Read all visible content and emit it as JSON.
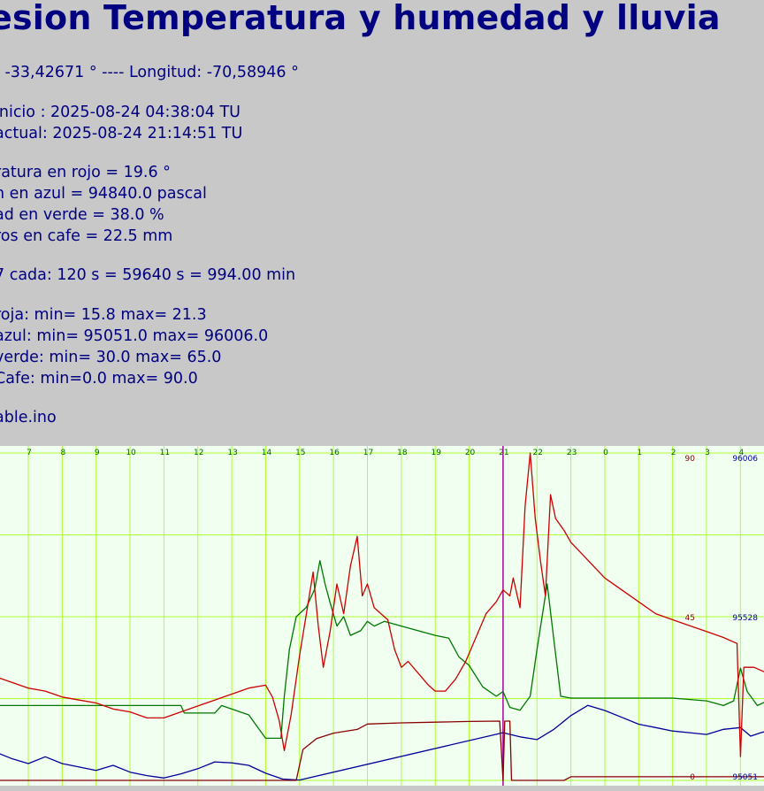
{
  "header": {
    "title": "esion Temperatura y humedad y lluvia",
    "coords": ": -33,42671 ° ---- Longitud: -70,58946 °",
    "start": "inicio : 2025-08-24 04:38:04 TU",
    "current": "actual: 2025-08-24 21:14:51 TU",
    "temp_now": "ratura en rojo = 19.6 °",
    "press_now": "n en azul = 94840.0 pascal",
    "hum_now": "ad en verde = 38.0 %",
    "rain_now": "ros en cafe = 22.5 mm",
    "interval": "7 cada: 120 s = 59640 s = 994.00 min",
    "red_range": " roja: min= 15.8 max= 21.3",
    "blue_range": " azul: min= 95051.0 max= 96006.0",
    "green_range": " verde: min= 30.0 max= 65.0",
    "cafe_range": " Cafe: min=0.0 max= 90.0",
    "file": "able.ino"
  },
  "colors": {
    "background": "#c8c8c8",
    "plot_bg": "#f0fff0",
    "grid": "#adff2f",
    "temperature": "#cc0000",
    "pressure": "#000099",
    "humidity": "#007700",
    "rain": "#880000",
    "marker": "#aa00aa",
    "text": "#000080"
  },
  "chart_data": {
    "type": "line",
    "x_hour_labels": [
      "7",
      "8",
      "9",
      "10",
      "11",
      "12",
      "13",
      "14",
      "15",
      "16",
      "17",
      "18",
      "19",
      "20",
      "21",
      "22",
      "23",
      "0",
      "1",
      "2",
      "3",
      "4"
    ],
    "right_scale_labels": [
      "90",
      "45",
      "0"
    ],
    "pressure_scale_labels": [
      "96006",
      "95528",
      "95051"
    ],
    "marker_hour": "21",
    "series": [
      {
        "name": "temperatura",
        "ylim": [
          15.8,
          21.3
        ],
        "points": [
          [
            6.0,
            17.55
          ],
          [
            6.5,
            17.45
          ],
          [
            7.0,
            17.35
          ],
          [
            7.5,
            17.3
          ],
          [
            8.0,
            17.2
          ],
          [
            8.5,
            17.15
          ],
          [
            9.0,
            17.1
          ],
          [
            9.5,
            17.0
          ],
          [
            10.0,
            16.95
          ],
          [
            10.5,
            16.85
          ],
          [
            11.0,
            16.85
          ],
          [
            11.5,
            16.95
          ],
          [
            12.0,
            17.05
          ],
          [
            12.5,
            17.15
          ],
          [
            13.0,
            17.25
          ],
          [
            13.5,
            17.35
          ],
          [
            14.0,
            17.4
          ],
          [
            14.2,
            17.2
          ],
          [
            14.4,
            16.8
          ],
          [
            14.55,
            16.3
          ],
          [
            14.75,
            16.9
          ],
          [
            15.0,
            17.9
          ],
          [
            15.2,
            18.6
          ],
          [
            15.4,
            19.3
          ],
          [
            15.55,
            18.4
          ],
          [
            15.7,
            17.7
          ],
          [
            15.9,
            18.3
          ],
          [
            16.1,
            19.1
          ],
          [
            16.3,
            18.6
          ],
          [
            16.5,
            19.4
          ],
          [
            16.7,
            19.9
          ],
          [
            16.85,
            18.9
          ],
          [
            17.0,
            19.1
          ],
          [
            17.2,
            18.7
          ],
          [
            17.4,
            18.6
          ],
          [
            17.6,
            18.5
          ],
          [
            17.8,
            18.0
          ],
          [
            18.0,
            17.7
          ],
          [
            18.2,
            17.8
          ],
          [
            18.5,
            17.6
          ],
          [
            18.8,
            17.4
          ],
          [
            19.0,
            17.3
          ],
          [
            19.3,
            17.3
          ],
          [
            19.6,
            17.5
          ],
          [
            19.9,
            17.8
          ],
          [
            20.2,
            18.2
          ],
          [
            20.5,
            18.6
          ],
          [
            20.8,
            18.8
          ],
          [
            21.0,
            19.0
          ],
          [
            21.2,
            18.9
          ],
          [
            21.3,
            19.2
          ],
          [
            21.5,
            18.7
          ],
          [
            21.65,
            20.4
          ],
          [
            21.8,
            21.3
          ],
          [
            21.95,
            20.2
          ],
          [
            22.1,
            19.5
          ],
          [
            22.25,
            18.9
          ],
          [
            22.4,
            20.6
          ],
          [
            22.55,
            20.2
          ],
          [
            22.8,
            20.0
          ],
          [
            23.0,
            19.8
          ],
          [
            23.5,
            19.5
          ],
          [
            24.0,
            19.2
          ],
          [
            24.5,
            19.0
          ],
          [
            25.0,
            18.8
          ],
          [
            25.5,
            18.6
          ],
          [
            26.0,
            18.5
          ],
          [
            26.5,
            18.4
          ],
          [
            27.0,
            18.3
          ],
          [
            27.5,
            18.2
          ],
          [
            27.9,
            18.1
          ],
          [
            28.0,
            16.2
          ],
          [
            28.1,
            17.7
          ],
          [
            28.4,
            17.7
          ],
          [
            28.8,
            17.6
          ]
        ]
      },
      {
        "name": "humedad",
        "ylim": [
          30.0,
          65.0
        ],
        "points": [
          [
            6.0,
            38.0
          ],
          [
            11.5,
            38.0
          ],
          [
            11.6,
            37.2
          ],
          [
            12.5,
            37.2
          ],
          [
            12.7,
            38.0
          ],
          [
            13.5,
            37.0
          ],
          [
            14.0,
            34.5
          ],
          [
            14.45,
            34.5
          ],
          [
            14.55,
            39.0
          ],
          [
            14.7,
            44.0
          ],
          [
            14.9,
            47.5
          ],
          [
            15.2,
            48.5
          ],
          [
            15.45,
            50.5
          ],
          [
            15.6,
            53.5
          ],
          [
            15.75,
            51.0
          ],
          [
            15.9,
            49.0
          ],
          [
            16.1,
            46.5
          ],
          [
            16.3,
            47.5
          ],
          [
            16.5,
            45.5
          ],
          [
            16.8,
            46.0
          ],
          [
            17.0,
            47.0
          ],
          [
            17.2,
            46.5
          ],
          [
            17.5,
            47.0
          ],
          [
            18.0,
            46.5
          ],
          [
            18.5,
            46.0
          ],
          [
            19.0,
            45.5
          ],
          [
            19.4,
            45.2
          ],
          [
            19.7,
            43.2
          ],
          [
            20.0,
            42.3
          ],
          [
            20.4,
            40.0
          ],
          [
            20.8,
            39.0
          ],
          [
            21.0,
            39.5
          ],
          [
            21.2,
            37.8
          ],
          [
            21.5,
            37.5
          ],
          [
            21.8,
            39.0
          ],
          [
            22.0,
            44.0
          ],
          [
            22.3,
            51.0
          ],
          [
            22.5,
            45.0
          ],
          [
            22.7,
            39.0
          ],
          [
            23.0,
            38.8
          ],
          [
            24.0,
            38.8
          ],
          [
            25.0,
            38.8
          ],
          [
            26.0,
            38.8
          ],
          [
            27.0,
            38.5
          ],
          [
            27.5,
            38.0
          ],
          [
            27.8,
            38.5
          ],
          [
            28.0,
            42.0
          ],
          [
            28.2,
            39.5
          ],
          [
            28.5,
            38.0
          ],
          [
            28.8,
            38.5
          ]
        ]
      },
      {
        "name": "presion",
        "ylim": [
          95051.0,
          96006.0
        ],
        "points": [
          [
            6.0,
            95135
          ],
          [
            6.5,
            95115
          ],
          [
            7.0,
            95100
          ],
          [
            7.5,
            95120
          ],
          [
            8.0,
            95100
          ],
          [
            8.5,
            95090
          ],
          [
            9.0,
            95080
          ],
          [
            9.5,
            95095
          ],
          [
            10.0,
            95075
          ],
          [
            10.5,
            95065
          ],
          [
            11.0,
            95058
          ],
          [
            11.5,
            95070
          ],
          [
            12.0,
            95085
          ],
          [
            12.5,
            95105
          ],
          [
            13.0,
            95102
          ],
          [
            13.5,
            95095
          ],
          [
            14.0,
            95072
          ],
          [
            14.5,
            95055
          ],
          [
            15.0,
            95052
          ],
          [
            21.0,
            95190
          ],
          [
            21.5,
            95178
          ],
          [
            22.0,
            95170
          ],
          [
            22.5,
            95200
          ],
          [
            23.0,
            95240
          ],
          [
            23.5,
            95270
          ],
          [
            24.0,
            95255
          ],
          [
            24.5,
            95235
          ],
          [
            25.0,
            95215
          ],
          [
            25.5,
            95205
          ],
          [
            26.0,
            95195
          ],
          [
            26.5,
            95190
          ],
          [
            27.0,
            95185
          ],
          [
            27.5,
            95200
          ],
          [
            28.0,
            95205
          ],
          [
            28.3,
            95180
          ],
          [
            28.6,
            95190
          ],
          [
            28.8,
            95195
          ]
        ]
      },
      {
        "name": "lluvia",
        "ylim": [
          0.0,
          90.0
        ],
        "points": [
          [
            6.0,
            0
          ],
          [
            14.9,
            0
          ],
          [
            15.1,
            8.5
          ],
          [
            15.5,
            11.5
          ],
          [
            16.0,
            13.0
          ],
          [
            16.7,
            14.0
          ],
          [
            17.0,
            15.5
          ],
          [
            18.0,
            15.8
          ],
          [
            19.0,
            16.0
          ],
          [
            20.0,
            16.2
          ],
          [
            20.9,
            16.3
          ],
          [
            21.0,
            0
          ],
          [
            21.05,
            16.3
          ],
          [
            21.2,
            16.3
          ],
          [
            21.25,
            0
          ],
          [
            22.8,
            0
          ],
          [
            23.0,
            1.0
          ],
          [
            28.8,
            1.0
          ]
        ]
      }
    ]
  }
}
